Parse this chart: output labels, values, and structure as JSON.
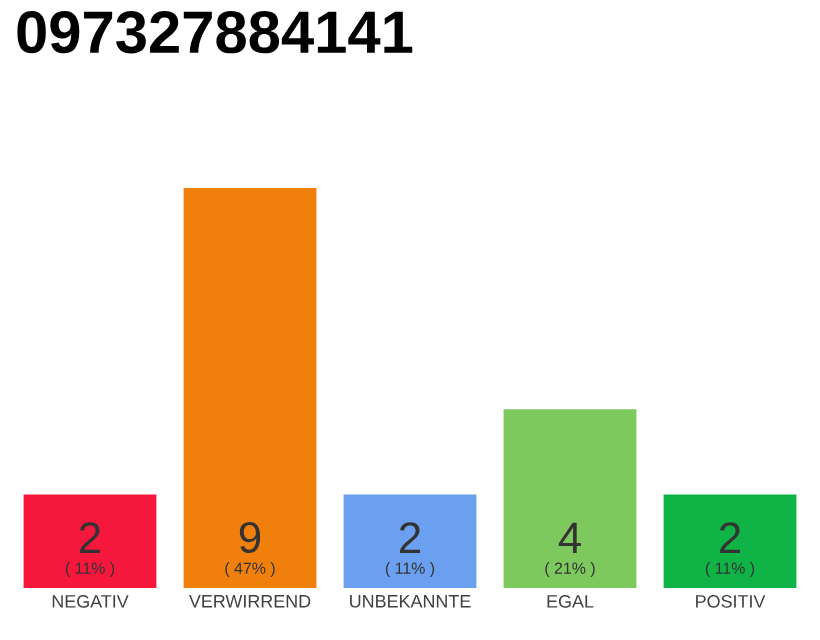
{
  "chart_data": {
    "type": "bar",
    "title": "097327884141",
    "categories": [
      "NEGATIV",
      "VERWIRREND",
      "UNBEKANNTE",
      "EGAL",
      "POSITIV"
    ],
    "values": [
      11,
      47,
      11,
      21,
      11
    ],
    "colors": [
      "#f5173c",
      "#f07f0b",
      "#6b9ff0",
      "#7ec95d",
      "#0fb346"
    ],
    "value_labels": [
      "( 11% )",
      "( 47% )",
      "( 11% )",
      "( 21% )",
      "( 11% )"
    ],
    "annotations": [
      "2",
      "9",
      "2",
      "4",
      "2"
    ],
    "tick_labels": "x"
  }
}
